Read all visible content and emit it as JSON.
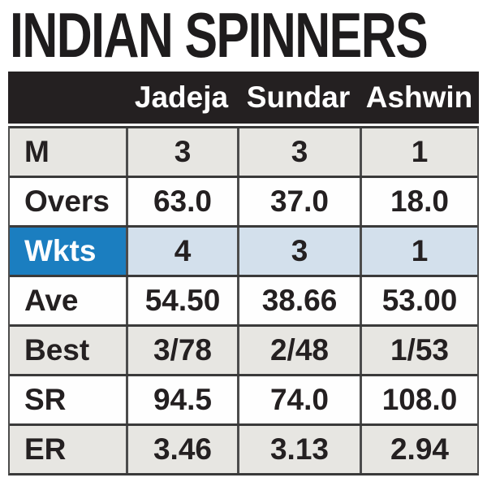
{
  "title": "INDIAN SPINNERS",
  "chart_data": {
    "type": "table",
    "title": "INDIAN SPINNERS",
    "columns": [
      "",
      "Jadeja",
      "Sundar",
      "Ashwin"
    ],
    "row_labels": [
      "M",
      "Overs",
      "Wkts",
      "Ave",
      "Best",
      "SR",
      "ER"
    ],
    "rows": [
      [
        "M",
        "3",
        "3",
        "1"
      ],
      [
        "Overs",
        "63.0",
        "37.0",
        "18.0"
      ],
      [
        "Wkts",
        "4",
        "3",
        "1"
      ],
      [
        "Ave",
        "54.50",
        "38.66",
        "53.00"
      ],
      [
        "Best",
        "3/78",
        "2/48",
        "1/53"
      ],
      [
        "SR",
        "94.5",
        "74.0",
        "108.0"
      ],
      [
        "ER",
        "3.46",
        "3.13",
        "2.94"
      ]
    ],
    "highlighted_row": "Wkts",
    "legend_position": "none",
    "notes": "Static infographic table; Wkts row highlighted in blue"
  },
  "colors": {
    "title_text": "#1e1c1d",
    "header_bg": "#242021",
    "header_text": "#ffffff",
    "row_alt_bg": "#e7e6e2",
    "row_white_bg": "#fefefe",
    "highlight_label_bg": "#1b7ec0",
    "highlight_cell_bg": "#d3e0ec",
    "border_horizontal": "#3a3a3a",
    "border_vertical": "#4c4c4c",
    "cell_text": "#242021"
  }
}
